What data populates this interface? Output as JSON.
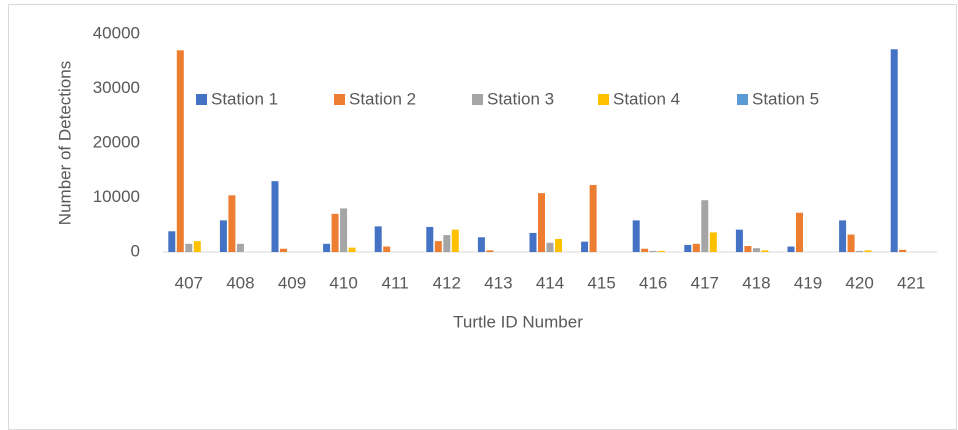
{
  "chart_data": {
    "type": "bar",
    "y_label": "Number of Detections",
    "x_label": "Turtle ID Number",
    "categories": [
      "407",
      "408",
      "409",
      "410",
      "411",
      "412",
      "413",
      "414",
      "415",
      "416",
      "417",
      "418",
      "419",
      "420",
      "421"
    ],
    "series": [
      {
        "name": "Station 1",
        "color": "#4472c4",
        "values": [
          3800,
          5800,
          13000,
          1500,
          4700,
          4600,
          2700,
          3500,
          1900,
          5800,
          1300,
          4100,
          1000,
          5800,
          37200
        ]
      },
      {
        "name": "Station 2",
        "color": "#ed7d31",
        "values": [
          37000,
          10400,
          600,
          7000,
          1000,
          2000,
          300,
          10800,
          12300,
          600,
          1500,
          1100,
          7200,
          3200,
          400
        ]
      },
      {
        "name": "Station 3",
        "color": "#a5a5a5",
        "values": [
          1500,
          1500,
          0,
          8000,
          0,
          3100,
          0,
          1700,
          0,
          200,
          9500,
          700,
          0,
          200,
          0
        ]
      },
      {
        "name": "Station 4",
        "color": "#ffc000",
        "values": [
          2000,
          0,
          0,
          800,
          0,
          4100,
          0,
          2400,
          0,
          200,
          3600,
          300,
          0,
          300,
          0
        ]
      },
      {
        "name": "Station 5",
        "color": "#5b9bd5",
        "values": [
          0,
          0,
          0,
          0,
          0,
          0,
          0,
          0,
          0,
          0,
          0,
          0,
          0,
          0,
          0
        ]
      }
    ],
    "ylim": [
      0,
      40000
    ],
    "yticks": [
      0,
      10000,
      20000,
      30000,
      40000
    ],
    "grid": false,
    "legend": "top"
  }
}
